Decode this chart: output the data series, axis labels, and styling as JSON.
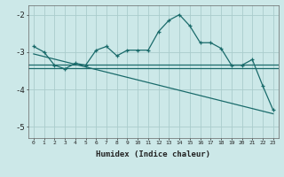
{
  "xlabel": "Humidex (Indice chaleur)",
  "ylabel": "",
  "background_color": "#cce8e8",
  "grid_color": "#aacccc",
  "line_color": "#1a6b6b",
  "x_values": [
    0,
    1,
    2,
    3,
    4,
    5,
    6,
    7,
    8,
    9,
    10,
    11,
    12,
    13,
    14,
    15,
    16,
    17,
    18,
    19,
    20,
    21,
    22,
    23
  ],
  "y_main": [
    -2.85,
    -3.0,
    -3.35,
    -3.45,
    -3.3,
    -3.35,
    -2.95,
    -2.85,
    -3.1,
    -2.95,
    -2.95,
    -2.95,
    -2.45,
    -2.15,
    -2.0,
    -2.3,
    -2.75,
    -2.75,
    -2.9,
    -3.35,
    -3.35,
    -3.2,
    -3.9,
    -4.55
  ],
  "hline1_y": -3.33,
  "hline2_y": -3.43,
  "diag_x0": 0,
  "diag_y0": -3.05,
  "diag_x1": 23,
  "diag_y1": -4.65,
  "ylim": [
    -5.3,
    -1.75
  ],
  "yticks": [
    -5,
    -4,
    -3,
    -2
  ],
  "xlim": [
    -0.5,
    23.5
  ]
}
